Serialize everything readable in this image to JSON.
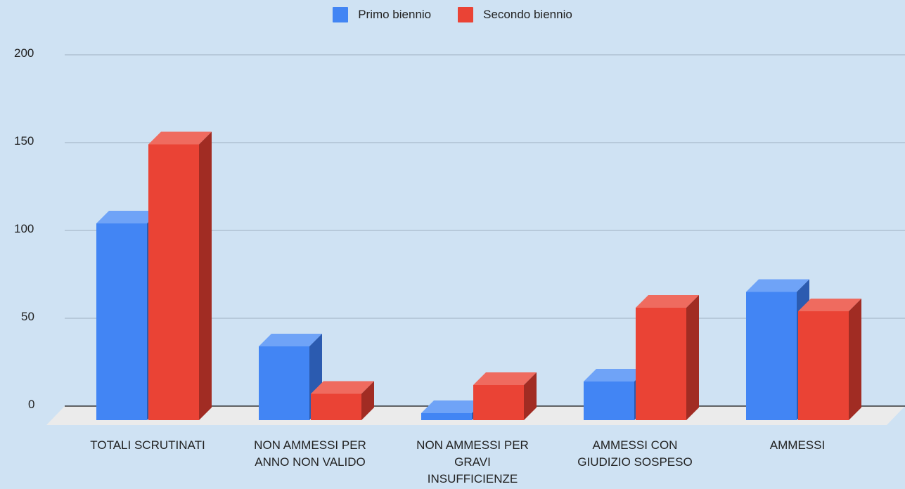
{
  "chart_data": {
    "type": "bar",
    "categories": [
      [
        "TOTALI SCRUTINATI"
      ],
      [
        "NON AMMESSI PER",
        "ANNO NON VALIDO"
      ],
      [
        "NON AMMESSI PER",
        "GRAVI",
        "INSUFFICIENZE"
      ],
      [
        "AMMESSI CON",
        "GIUDIZIO SOSPESO"
      ],
      [
        "AMMESSI"
      ]
    ],
    "series": [
      {
        "name": "Primo biennio",
        "values": [
          104,
          34,
          -4,
          14,
          65
        ],
        "color": "#4285f4",
        "top": "#6fa3f7",
        "side": "#2b5bb0"
      },
      {
        "name": "Secondo biennio",
        "values": [
          149,
          7,
          12,
          56,
          54
        ],
        "color": "#ea4335",
        "top": "#ef6b5f",
        "side": "#a12c23"
      }
    ],
    "yticks": [
      "200",
      "150",
      "100",
      "50",
      "0"
    ],
    "ylim": [
      0,
      200
    ],
    "legend_position": "top",
    "grid": true
  }
}
